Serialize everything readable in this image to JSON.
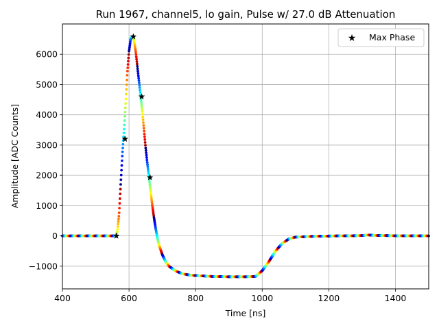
{
  "chart_data": {
    "type": "scatter",
    "title": "Run 1967, channel5, lo gain, Pulse w/ 27.0 dB Attenuation",
    "xlabel": "Time [ns]",
    "ylabel": "Amplitude [ADC Counts]",
    "xlim": [
      400,
      1500
    ],
    "ylim": [
      -1750,
      7000
    ],
    "grid": true,
    "legend_position": "top-right",
    "x_ticks": [
      400,
      600,
      800,
      1000,
      1200,
      1400
    ],
    "x_tick_labels": [
      "400",
      "600",
      "800",
      "1000",
      "1200",
      "1400"
    ],
    "y_ticks": [
      -1000,
      0,
      1000,
      2000,
      3000,
      4000,
      5000,
      6000
    ],
    "y_tick_labels": [
      "−1000",
      "0",
      "1000",
      "2000",
      "3000",
      "4000",
      "5000",
      "6000"
    ],
    "waveform": {
      "colormap": "jet",
      "points_x": [
        400,
        560,
        565,
        570,
        575,
        580,
        585,
        590,
        595,
        600,
        605,
        610,
        615,
        620,
        625,
        630,
        635,
        640,
        645,
        650,
        655,
        660,
        665,
        670,
        675,
        680,
        685,
        690,
        700,
        710,
        720,
        740,
        760,
        780,
        800,
        850,
        900,
        950,
        980,
        1000,
        1020,
        1040,
        1060,
        1080,
        1100,
        1150,
        1200,
        1300,
        1320,
        1340,
        1400,
        1500
      ],
      "points_y": [
        0,
        0,
        150,
        700,
        1700,
        2700,
        3500,
        4400,
        5400,
        6100,
        6500,
        6600,
        6450,
        6100,
        5600,
        5100,
        4600,
        4100,
        3500,
        2900,
        2400,
        1950,
        1450,
        1000,
        600,
        250,
        -50,
        -300,
        -620,
        -850,
        -1000,
        -1160,
        -1250,
        -1290,
        -1310,
        -1340,
        -1350,
        -1350,
        -1340,
        -1150,
        -850,
        -500,
        -250,
        -100,
        -40,
        -15,
        -5,
        10,
        30,
        15,
        5,
        0
      ]
    },
    "series": [
      {
        "name": "Max Phase",
        "marker": "star",
        "color": "#000000",
        "x": [
          562,
          588,
          613,
          638,
          663
        ],
        "y": [
          0,
          3200,
          6580,
          4600,
          1930
        ]
      }
    ]
  }
}
